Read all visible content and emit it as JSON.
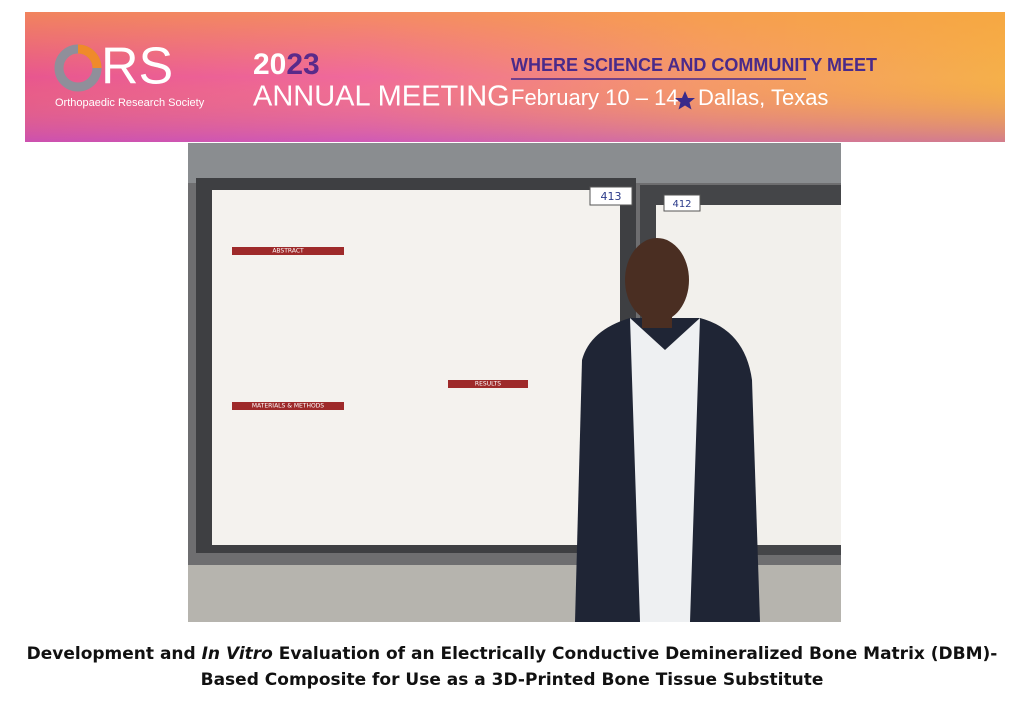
{
  "banner": {
    "logo_letters": "RS",
    "society": "Orthopaedic Research Society",
    "year_prefix": "20",
    "year_suffix": "23",
    "event": "ANNUAL MEETING",
    "tagline": "WHERE SCIENCE AND COMMUNITY MEET",
    "dates": "February 10 – 14",
    "location": "Dallas, Texas"
  },
  "photo": {
    "booth_left": "413",
    "booth_right": "412",
    "poster_section": "ABSTRACT",
    "poster_section_2": "RESULTS",
    "poster_section_3": "MATERIALS & METHODS"
  },
  "caption": {
    "before": "Development and ",
    "italic": "In Vitro",
    "after": " Evaluation of an Electrically Conductive Demineralized Bone Matrix (DBM)-",
    "line2": "Based Composite for Use as a 3D-Printed Bone Tissue Substitute"
  }
}
